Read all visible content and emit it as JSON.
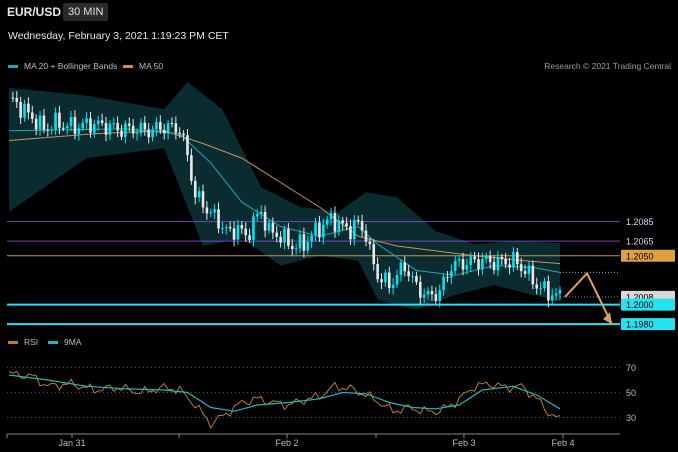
{
  "header": {
    "symbol": "EUR/USD",
    "timeframe": "30 MIN",
    "datetime": "Wednesday, February 3, 2021 1:19:23 PM CET"
  },
  "legend": {
    "bb_label": "MA 20 + Bollinger Bands",
    "ma50_label": "MA 50",
    "credit": "Research © 2021 Trading Central",
    "rsi_label": "RSI",
    "ma9_label": "9MA"
  },
  "colors": {
    "bg": "#000000",
    "bull": "#00e5f0",
    "bear": "#e8e8e8",
    "bb_band": "#0e3a40",
    "ma20": "#1fa7b0",
    "ma50": "#c8915a",
    "rsi": "#c07a30",
    "ma9": "#1fb7c0",
    "support": "#22e3ef",
    "resistance_purple": "#7a4fc9",
    "pivot_orange": "#e0a040"
  },
  "chart_data": [
    {
      "type": "candlestick",
      "x_tick_labels": [
        "Jan 31",
        "Feb 2",
        "Feb 3",
        "Feb 4"
      ],
      "ylim": [
        1.1972,
        1.2232
      ],
      "levels": [
        {
          "price": 1.2085,
          "label": "1.2085",
          "color": "#7a4fc9"
        },
        {
          "price": 1.2065,
          "label": "1.2065",
          "color": "#7a4fc9"
        },
        {
          "price": 1.205,
          "label": "1.2050",
          "color": "#e0a040"
        },
        {
          "price": 1.2008,
          "label": "1.2008",
          "color": "#d8d8d8"
        },
        {
          "price": 1.2,
          "label": "1.2000",
          "color": "#22e3ef"
        },
        {
          "price": 1.198,
          "label": "1.1980",
          "color": "#22e3ef"
        }
      ],
      "forecast": [
        1.2008,
        1.2032,
        1.198
      ],
      "close_path": [
        [
          0,
          1.2212
        ],
        [
          5,
          1.2195
        ],
        [
          9,
          1.218
        ],
        [
          12,
          1.2186
        ],
        [
          17,
          1.2182
        ],
        [
          21,
          1.2185
        ],
        [
          25,
          1.2183
        ],
        [
          29,
          1.2179
        ],
        [
          32,
          1.218
        ],
        [
          36,
          1.2178
        ],
        [
          40,
          1.2182
        ],
        [
          44,
          1.218
        ],
        [
          46,
          1.2152
        ],
        [
          48,
          1.2112
        ],
        [
          51,
          1.2098
        ],
        [
          54,
          1.2085
        ],
        [
          57,
          1.2072
        ],
        [
          59,
          1.208
        ],
        [
          61,
          1.2068
        ],
        [
          63,
          1.2085
        ],
        [
          65,
          1.2095
        ],
        [
          67,
          1.2075
        ],
        [
          70,
          1.207
        ],
        [
          73,
          1.206
        ],
        [
          76,
          1.2062
        ],
        [
          79,
          1.2075
        ],
        [
          83,
          1.2088
        ],
        [
          86,
          1.208
        ],
        [
          88,
          1.2077
        ],
        [
          90,
          1.2083
        ],
        [
          92,
          1.2072
        ],
        [
          93,
          1.2053
        ],
        [
          95,
          1.203
        ],
        [
          98,
          1.202
        ],
        [
          102,
          1.204
        ],
        [
          105,
          1.2018
        ],
        [
          108,
          1.2008
        ],
        [
          111,
          1.2013
        ],
        [
          114,
          1.204
        ],
        [
          118,
          1.2043
        ],
        [
          122,
          1.2045
        ],
        [
          126,
          1.2043
        ],
        [
          130,
          1.2045
        ],
        [
          133,
          1.2035
        ],
        [
          136,
          1.202
        ],
        [
          139,
          1.2012
        ],
        [
          142,
          1.2008
        ]
      ],
      "ma50_path": [
        [
          0,
          1.2168
        ],
        [
          22,
          1.2175
        ],
        [
          40,
          1.2178
        ],
        [
          50,
          1.2165
        ],
        [
          60,
          1.215
        ],
        [
          70,
          1.2125
        ],
        [
          80,
          1.21
        ],
        [
          90,
          1.207
        ],
        [
          100,
          1.206
        ],
        [
          110,
          1.2055
        ],
        [
          120,
          1.205
        ],
        [
          130,
          1.2046
        ],
        [
          142,
          1.2042
        ]
      ],
      "ma20_path": [
        [
          0,
          1.2178
        ],
        [
          15,
          1.2179
        ],
        [
          30,
          1.218
        ],
        [
          44,
          1.2175
        ],
        [
          52,
          1.2145
        ],
        [
          60,
          1.2105
        ],
        [
          70,
          1.208
        ],
        [
          80,
          1.207
        ],
        [
          90,
          1.208
        ],
        [
          95,
          1.2062
        ],
        [
          105,
          1.2035
        ],
        [
          115,
          1.203
        ],
        [
          125,
          1.204
        ],
        [
          135,
          1.2038
        ],
        [
          142,
          1.2033
        ]
      ],
      "bb_upper": [
        [
          0,
          1.2222
        ],
        [
          20,
          1.2214
        ],
        [
          40,
          1.22
        ],
        [
          46,
          1.2228
        ],
        [
          55,
          1.22
        ],
        [
          65,
          1.212
        ],
        [
          75,
          1.21
        ],
        [
          85,
          1.2095
        ],
        [
          92,
          1.2115
        ],
        [
          100,
          1.211
        ],
        [
          110,
          1.2075
        ],
        [
          120,
          1.2062
        ],
        [
          130,
          1.2065
        ],
        [
          142,
          1.2063
        ]
      ],
      "bb_lower": [
        [
          0,
          1.2095
        ],
        [
          20,
          1.215
        ],
        [
          40,
          1.216
        ],
        [
          50,
          1.206
        ],
        [
          60,
          1.2068
        ],
        [
          70,
          1.204
        ],
        [
          80,
          1.205
        ],
        [
          90,
          1.2045
        ],
        [
          95,
          1.2005
        ],
        [
          105,
          1.1995
        ],
        [
          115,
          1.201
        ],
        [
          125,
          1.202
        ],
        [
          135,
          1.201
        ],
        [
          142,
          1.2003
        ]
      ]
    },
    {
      "type": "line",
      "name": "RSI",
      "ylim": [
        20,
        80
      ],
      "y_ticks": [
        70,
        50,
        30
      ],
      "rsi_path": [
        [
          0,
          65
        ],
        [
          6,
          63
        ],
        [
          10,
          55
        ],
        [
          16,
          57
        ],
        [
          22,
          52
        ],
        [
          28,
          54
        ],
        [
          34,
          50
        ],
        [
          40,
          54
        ],
        [
          44,
          52
        ],
        [
          48,
          40
        ],
        [
          52,
          25
        ],
        [
          56,
          33
        ],
        [
          60,
          42
        ],
        [
          64,
          45
        ],
        [
          68,
          42
        ],
        [
          72,
          40
        ],
        [
          76,
          44
        ],
        [
          80,
          47
        ],
        [
          84,
          55
        ],
        [
          88,
          53
        ],
        [
          92,
          48
        ],
        [
          95,
          43
        ],
        [
          99,
          35
        ],
        [
          103,
          38
        ],
        [
          107,
          35
        ],
        [
          111,
          35
        ],
        [
          115,
          42
        ],
        [
          120,
          55
        ],
        [
          124,
          57
        ],
        [
          128,
          54
        ],
        [
          132,
          55
        ],
        [
          136,
          45
        ],
        [
          139,
          34
        ],
        [
          142,
          28
        ]
      ],
      "ma9_path": [
        [
          0,
          64
        ],
        [
          10,
          60
        ],
        [
          20,
          55
        ],
        [
          30,
          53
        ],
        [
          40,
          52
        ],
        [
          46,
          50
        ],
        [
          52,
          38
        ],
        [
          58,
          35
        ],
        [
          64,
          40
        ],
        [
          72,
          42
        ],
        [
          80,
          45
        ],
        [
          86,
          50
        ],
        [
          92,
          49
        ],
        [
          98,
          42
        ],
        [
          104,
          38
        ],
        [
          110,
          37
        ],
        [
          116,
          40
        ],
        [
          122,
          52
        ],
        [
          130,
          55
        ],
        [
          136,
          48
        ],
        [
          142,
          37
        ]
      ]
    }
  ]
}
